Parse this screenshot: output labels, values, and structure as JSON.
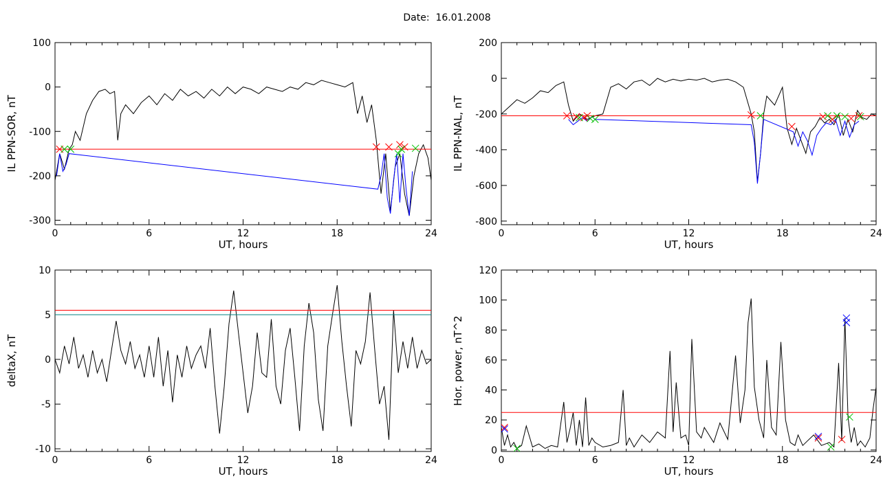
{
  "page_title": "Date:  16.01.2008",
  "chart_data": [
    {
      "type": "line",
      "id": "il-ppn-sor",
      "ylabel": "IL PPN-SOR, nT",
      "xlabel": "UT, hours",
      "xlim": [
        0,
        24
      ],
      "ylim": [
        -310,
        100
      ],
      "xticks": [
        0,
        6,
        12,
        18,
        24
      ],
      "yticks": [
        100,
        0,
        -100,
        -200,
        -300
      ],
      "colors": {
        "trace": "#000000",
        "highlight": "#0000ff",
        "threshold": "#ff0000",
        "marker_start": "#ff0000",
        "marker_end": "#00c000"
      },
      "thresholds": [
        {
          "value": -140,
          "color": "#ff0000"
        }
      ],
      "series": [
        {
          "x": [
            0,
            0.3,
            0.6,
            0.9,
            1.1,
            1.3,
            1.6,
            2.0,
            2.4,
            2.8,
            3.2,
            3.5,
            3.8,
            4.0,
            4.2,
            4.5,
            5.0,
            5.5,
            6.0,
            6.5,
            7.0,
            7.5,
            8.0,
            8.5,
            9.0,
            9.5,
            10.0,
            10.5,
            11.0,
            11.5,
            12.0,
            12.5,
            13.0,
            13.5,
            14.0,
            14.5,
            15.0,
            15.5,
            16.0,
            16.5,
            17.0,
            17.5,
            18.0,
            18.5,
            19.0,
            19.3,
            19.6,
            19.9,
            20.2,
            20.5,
            20.8,
            21.1,
            21.4,
            21.7,
            22.0,
            22.3,
            22.6,
            22.9,
            23.2,
            23.5,
            23.8,
            24.0
          ],
          "y": [
            -210,
            -150,
            -185,
            -140,
            -130,
            -100,
            -120,
            -60,
            -30,
            -10,
            -5,
            -15,
            -10,
            -120,
            -60,
            -40,
            -60,
            -35,
            -20,
            -40,
            -15,
            -30,
            -5,
            -20,
            -10,
            -25,
            -5,
            -20,
            0,
            -15,
            0,
            -5,
            -15,
            0,
            -5,
            -10,
            0,
            -5,
            10,
            5,
            15,
            10,
            5,
            0,
            10,
            -60,
            -20,
            -80,
            -40,
            -120,
            -240,
            -150,
            -280,
            -180,
            -150,
            -240,
            -290,
            -200,
            -150,
            -130,
            -160,
            -210
          ]
        },
        {
          "x": [
            0.1,
            0.3,
            0.5,
            0.7,
            0.9,
            20.6,
            20.8,
            21.0,
            21.2,
            21.4,
            21.6,
            21.8,
            22.0,
            22.2,
            22.4,
            22.6,
            22.8
          ],
          "y": [
            -200,
            -150,
            -190,
            -175,
            -150,
            -230,
            -200,
            -150,
            -250,
            -285,
            -210,
            -150,
            -260,
            -150,
            -230,
            -290,
            -190
          ]
        }
      ],
      "markers": {
        "start": [
          [
            0.3,
            -140
          ],
          [
            20.5,
            -135
          ],
          [
            21.3,
            -135
          ],
          [
            22.0,
            -130
          ],
          [
            22.3,
            -135
          ]
        ],
        "end": [
          [
            1.0,
            -140
          ],
          [
            21.9,
            -150
          ],
          [
            22.1,
            -140
          ],
          [
            23.0,
            -138
          ],
          [
            0.6,
            -140
          ]
        ]
      }
    },
    {
      "type": "line",
      "id": "il-ppn-nal",
      "ylabel": "IL PPN-NAL, nT",
      "xlabel": "UT, hours",
      "xlim": [
        0,
        24
      ],
      "ylim": [
        -820,
        200
      ],
      "xticks": [
        0,
        6,
        12,
        18,
        24
      ],
      "yticks": [
        200,
        0,
        -200,
        -400,
        -600,
        -800
      ],
      "colors": {
        "trace": "#000000",
        "highlight": "#0000ff",
        "threshold": "#ff0000",
        "marker_start": "#ff0000",
        "marker_end": "#00c000"
      },
      "thresholds": [
        {
          "value": -210,
          "color": "#ff0000"
        }
      ],
      "series": [
        {
          "x": [
            0,
            0.5,
            1.0,
            1.5,
            2.0,
            2.5,
            3.0,
            3.5,
            4.0,
            4.3,
            4.6,
            5.0,
            5.5,
            6.0,
            6.5,
            7.0,
            7.5,
            8.0,
            8.5,
            9.0,
            9.5,
            10.0,
            10.5,
            11.0,
            11.5,
            12.0,
            12.5,
            13.0,
            13.5,
            14.0,
            14.5,
            15.0,
            15.5,
            16.0,
            16.2,
            16.4,
            16.6,
            16.8,
            17.0,
            17.5,
            18.0,
            18.3,
            18.6,
            18.9,
            19.2,
            19.5,
            19.8,
            20.1,
            20.4,
            20.7,
            21.0,
            21.3,
            21.6,
            21.9,
            22.2,
            22.5,
            22.8,
            23.1,
            23.4,
            23.7,
            24.0
          ],
          "y": [
            -200,
            -160,
            -120,
            -140,
            -110,
            -70,
            -80,
            -40,
            -20,
            -150,
            -240,
            -200,
            -230,
            -210,
            -200,
            -50,
            -30,
            -60,
            -20,
            -10,
            -40,
            0,
            -20,
            -5,
            -15,
            -5,
            -10,
            0,
            -20,
            -10,
            -5,
            -20,
            -50,
            -200,
            -300,
            -580,
            -420,
            -200,
            -100,
            -150,
            -50,
            -280,
            -370,
            -280,
            -350,
            -420,
            -300,
            -270,
            -220,
            -250,
            -230,
            -260,
            -200,
            -320,
            -230,
            -300,
            -180,
            -220,
            -230,
            -200,
            -210
          ]
        },
        {
          "x": [
            4.3,
            4.6,
            4.9,
            5.2,
            5.5,
            5.8,
            6.0,
            16.0,
            16.2,
            16.4,
            16.6,
            16.8,
            18.7,
            19.0,
            19.3,
            19.6,
            19.9,
            20.2,
            20.5,
            20.8,
            21.1,
            21.4,
            21.7,
            22.0,
            22.3,
            22.6,
            22.9
          ],
          "y": [
            -230,
            -260,
            -240,
            -220,
            -240,
            -215,
            -230,
            -260,
            -360,
            -590,
            -420,
            -230,
            -300,
            -380,
            -300,
            -350,
            -430,
            -320,
            -280,
            -250,
            -260,
            -230,
            -320,
            -240,
            -330,
            -260,
            -240
          ]
        }
      ],
      "markers": {
        "start": [
          [
            4.2,
            -210
          ],
          [
            4.8,
            -215
          ],
          [
            5.3,
            -220
          ],
          [
            5.5,
            -210
          ],
          [
            16.0,
            -205
          ],
          [
            18.6,
            -270
          ],
          [
            20.6,
            -215
          ],
          [
            21.2,
            -230
          ],
          [
            22.4,
            -225
          ],
          [
            22.9,
            -210
          ]
        ],
        "end": [
          [
            5.0,
            -220
          ],
          [
            5.7,
            -225
          ],
          [
            6.0,
            -230
          ],
          [
            16.6,
            -210
          ],
          [
            20.9,
            -210
          ],
          [
            21.5,
            -210
          ],
          [
            22.0,
            -215
          ],
          [
            23.0,
            -215
          ]
        ]
      }
    },
    {
      "type": "line",
      "id": "deltax",
      "ylabel": "deltaX, nT",
      "xlabel": "UT, hours",
      "xlim": [
        0,
        24
      ],
      "ylim": [
        -10.3,
        10
      ],
      "xticks": [
        0,
        6,
        12,
        18,
        24
      ],
      "yticks": [
        10,
        5,
        0,
        -5,
        -10
      ],
      "colors": {
        "trace": "#000000",
        "threshold_red": "#ff0000",
        "threshold_teal": "#008080"
      },
      "thresholds": [
        {
          "value": 5.5,
          "color": "#ff0000"
        },
        {
          "value": 5.0,
          "color": "#008080"
        }
      ],
      "series": [
        {
          "x": [
            0,
            0.3,
            0.6,
            0.9,
            1.2,
            1.5,
            1.8,
            2.1,
            2.4,
            2.7,
            3.0,
            3.3,
            3.6,
            3.9,
            4.2,
            4.5,
            4.8,
            5.1,
            5.4,
            5.7,
            6.0,
            6.3,
            6.6,
            6.9,
            7.2,
            7.5,
            7.8,
            8.1,
            8.4,
            8.7,
            9.0,
            9.3,
            9.6,
            9.9,
            10.2,
            10.5,
            10.8,
            11.1,
            11.4,
            11.7,
            12.0,
            12.3,
            12.6,
            12.9,
            13.2,
            13.5,
            13.8,
            14.1,
            14.4,
            14.7,
            15.0,
            15.3,
            15.6,
            15.9,
            16.2,
            16.5,
            16.8,
            17.1,
            17.4,
            17.7,
            18.0,
            18.3,
            18.6,
            18.9,
            19.2,
            19.5,
            19.8,
            20.1,
            20.4,
            20.7,
            21.0,
            21.3,
            21.6,
            21.9,
            22.2,
            22.5,
            22.8,
            23.1,
            23.4,
            23.7,
            24.0
          ],
          "y": [
            0,
            -1.5,
            1.5,
            -0.5,
            2.5,
            -1,
            0.5,
            -2,
            1,
            -1.5,
            0,
            -2.5,
            1,
            4.3,
            1,
            -0.5,
            2,
            -1,
            0.5,
            -2,
            1.5,
            -2,
            2.5,
            -3,
            1,
            -4.8,
            0.5,
            -2,
            1.5,
            -1,
            0.5,
            1.5,
            -1,
            3.5,
            -3,
            -8.3,
            -3,
            4,
            7.7,
            3,
            -1.5,
            -6,
            -3,
            3,
            -1.5,
            -2,
            4.5,
            -3,
            -5,
            1,
            3.5,
            -2,
            -8,
            1.5,
            6.3,
            3,
            -4.5,
            -8,
            1.5,
            5,
            8.3,
            2,
            -3,
            -7.5,
            1,
            -0.5,
            2,
            7.5,
            1,
            -5,
            -3,
            -9,
            5.5,
            -1.5,
            2,
            -1,
            2.5,
            -1,
            1,
            -0.5,
            0
          ]
        }
      ]
    },
    {
      "type": "line",
      "id": "hor-power",
      "ylabel": "Hor. power, nT^2",
      "xlabel": "UT, hours",
      "xlim": [
        0,
        24
      ],
      "ylim": [
        -1,
        120
      ],
      "xticks": [
        0,
        6,
        12,
        18,
        24
      ],
      "yticks": [
        120,
        100,
        80,
        60,
        40,
        20,
        0
      ],
      "colors": {
        "trace": "#000000",
        "threshold": "#ff0000",
        "marker_start": "#ff0000",
        "marker_end": "#00c000",
        "marker_peak": "#0000ff"
      },
      "thresholds": [
        {
          "value": 25,
          "color": "#ff0000"
        }
      ],
      "series": [
        {
          "x": [
            0,
            0.2,
            0.4,
            0.6,
            0.8,
            1.0,
            1.3,
            1.6,
            2.0,
            2.4,
            2.8,
            3.2,
            3.6,
            4.0,
            4.2,
            4.4,
            4.6,
            4.8,
            5.0,
            5.2,
            5.4,
            5.6,
            5.8,
            6.0,
            6.5,
            7.0,
            7.5,
            7.8,
            8.0,
            8.2,
            8.5,
            9.0,
            9.5,
            10.0,
            10.5,
            10.8,
            11.0,
            11.2,
            11.5,
            11.8,
            12.0,
            12.2,
            12.5,
            12.8,
            13.0,
            13.3,
            13.6,
            14.0,
            14.5,
            15.0,
            15.3,
            15.6,
            15.8,
            16.0,
            16.2,
            16.5,
            16.8,
            17.0,
            17.3,
            17.6,
            17.9,
            18.2,
            18.5,
            18.8,
            19.0,
            19.3,
            19.6,
            20.0,
            20.5,
            21.0,
            21.3,
            21.6,
            21.8,
            22.0,
            22.2,
            22.4,
            22.6,
            22.8,
            23.0,
            23.3,
            23.6,
            23.8,
            24.0
          ],
          "y": [
            15,
            3,
            10,
            2,
            5,
            1,
            3,
            16,
            2,
            4,
            1,
            3,
            2,
            32,
            5,
            14,
            25,
            3,
            20,
            2,
            35,
            3,
            8,
            5,
            2,
            3,
            5,
            40,
            3,
            8,
            2,
            10,
            5,
            12,
            8,
            66,
            12,
            45,
            8,
            10,
            3,
            74,
            12,
            8,
            15,
            10,
            5,
            18,
            7,
            63,
            18,
            40,
            85,
            101,
            42,
            20,
            8,
            60,
            15,
            10,
            72,
            20,
            5,
            3,
            10,
            3,
            6,
            10,
            3,
            5,
            2,
            58,
            6,
            88,
            22,
            5,
            15,
            3,
            6,
            2,
            8,
            27,
            42
          ]
        }
      ],
      "markers": {
        "start": [
          [
            0.2,
            15
          ],
          [
            20.3,
            8
          ],
          [
            21.8,
            7
          ]
        ],
        "end": [
          [
            1.0,
            1
          ],
          [
            21.1,
            2
          ],
          [
            22.3,
            22
          ]
        ],
        "peak": [
          [
            0.2,
            14
          ],
          [
            20.3,
            9
          ],
          [
            22.1,
            85
          ],
          [
            22.1,
            88
          ]
        ]
      }
    }
  ]
}
